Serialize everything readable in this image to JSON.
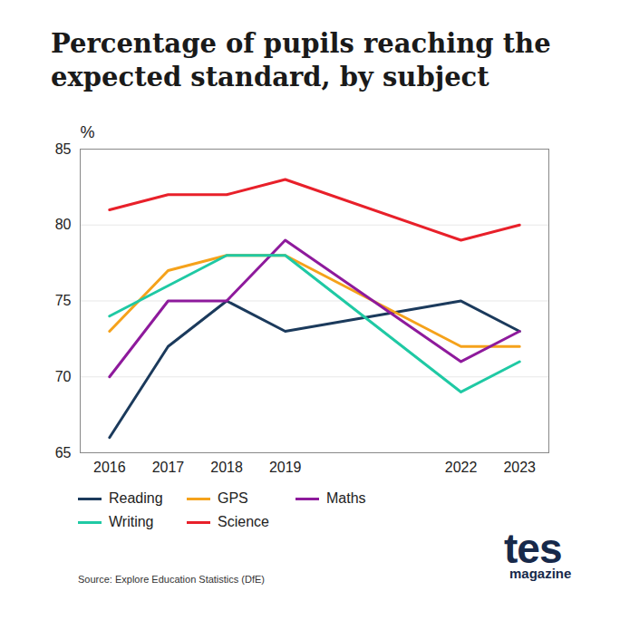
{
  "chart_data": {
    "type": "line",
    "title": "Percentage of pupils reaching the expected standard, by subject",
    "y_label": "%",
    "x": [
      2016,
      2017,
      2018,
      2019,
      2022,
      2023
    ],
    "series": [
      {
        "name": "Reading",
        "color": "#1b3a5c",
        "values": [
          66,
          72,
          75,
          73,
          75,
          73
        ]
      },
      {
        "name": "GPS",
        "color": "#f5a21b",
        "values": [
          73,
          77,
          78,
          78,
          72,
          72
        ]
      },
      {
        "name": "Maths",
        "color": "#8e1a9c",
        "values": [
          70,
          75,
          75,
          79,
          71,
          73
        ]
      },
      {
        "name": "Writing",
        "color": "#1fc9a4",
        "values": [
          74,
          76,
          78,
          78,
          69,
          71
        ]
      },
      {
        "name": "Science",
        "color": "#e8202a",
        "values": [
          81,
          82,
          82,
          83,
          79,
          80
        ]
      }
    ],
    "xlim": [
      2015.5,
      2023.5
    ],
    "xticks": [
      2016,
      2017,
      2018,
      2019,
      2022,
      2023
    ],
    "ylim": [
      65,
      85
    ],
    "yticks": [
      65,
      70,
      75,
      80,
      85
    ],
    "grid": true,
    "legend": "bottom",
    "caption": "Source: Explore Education Statistics (DfE)",
    "logo": {
      "text": "tes",
      "subtext": "magazine"
    }
  }
}
